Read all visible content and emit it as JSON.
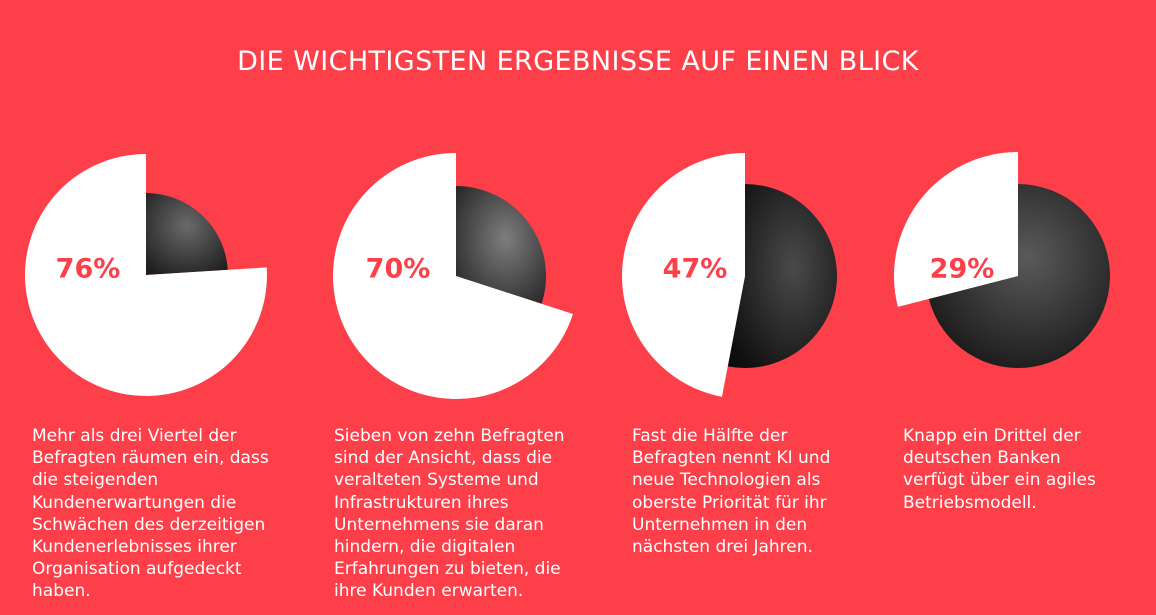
{
  "page": {
    "title": "DIE WICHTIGSTEN ERGEBNISSE AUF EINEN BLICK"
  },
  "colors": {
    "background": "#fd3f4a",
    "slice": "#ffffff",
    "label": "#fd3f4a",
    "text": "#ffffff",
    "photo": "#2c2c2c"
  },
  "chart_data": [
    {
      "type": "pie",
      "value_pct": 76,
      "label": "76%",
      "photo_icon": "city-lights-photo",
      "caption": "Mehr als drei Viertel der\nBefragten räumen ein, dass\ndie steigenden\nKundenerwartungen die\nSchwächen des derzeitigen\nKundenerlebnisses ihrer\nOrganisation aufgedeckt\nhaben."
    },
    {
      "type": "pie",
      "value_pct": 70,
      "label": "70%",
      "photo_icon": "business-people-photo",
      "caption": "Sieben von zehn Befragten\nsind der Ansicht, dass die\nveralteten Systeme und\nInfrastrukturen ihres\nUnternehmens sie daran\nhindern, die digitalen\nErfahrungen zu bieten, die\nihre Kunden erwarten."
    },
    {
      "type": "pie",
      "value_pct": 47,
      "label": "47%",
      "photo_icon": "woman-with-tablet-photo",
      "caption": "Fast die Hälfte der\nBefragten nennt KI und\nneue Technologien als\noberste Priorität für ihr\nUnternehmen in den\nnächsten drei Jahren."
    },
    {
      "type": "pie",
      "value_pct": 29,
      "label": "29%",
      "photo_icon": "financial-chart-photo",
      "caption": "Knapp ein Drittel der\ndeutschen Banken\nverfügt über ein agiles\nBetriebsmodell."
    }
  ]
}
